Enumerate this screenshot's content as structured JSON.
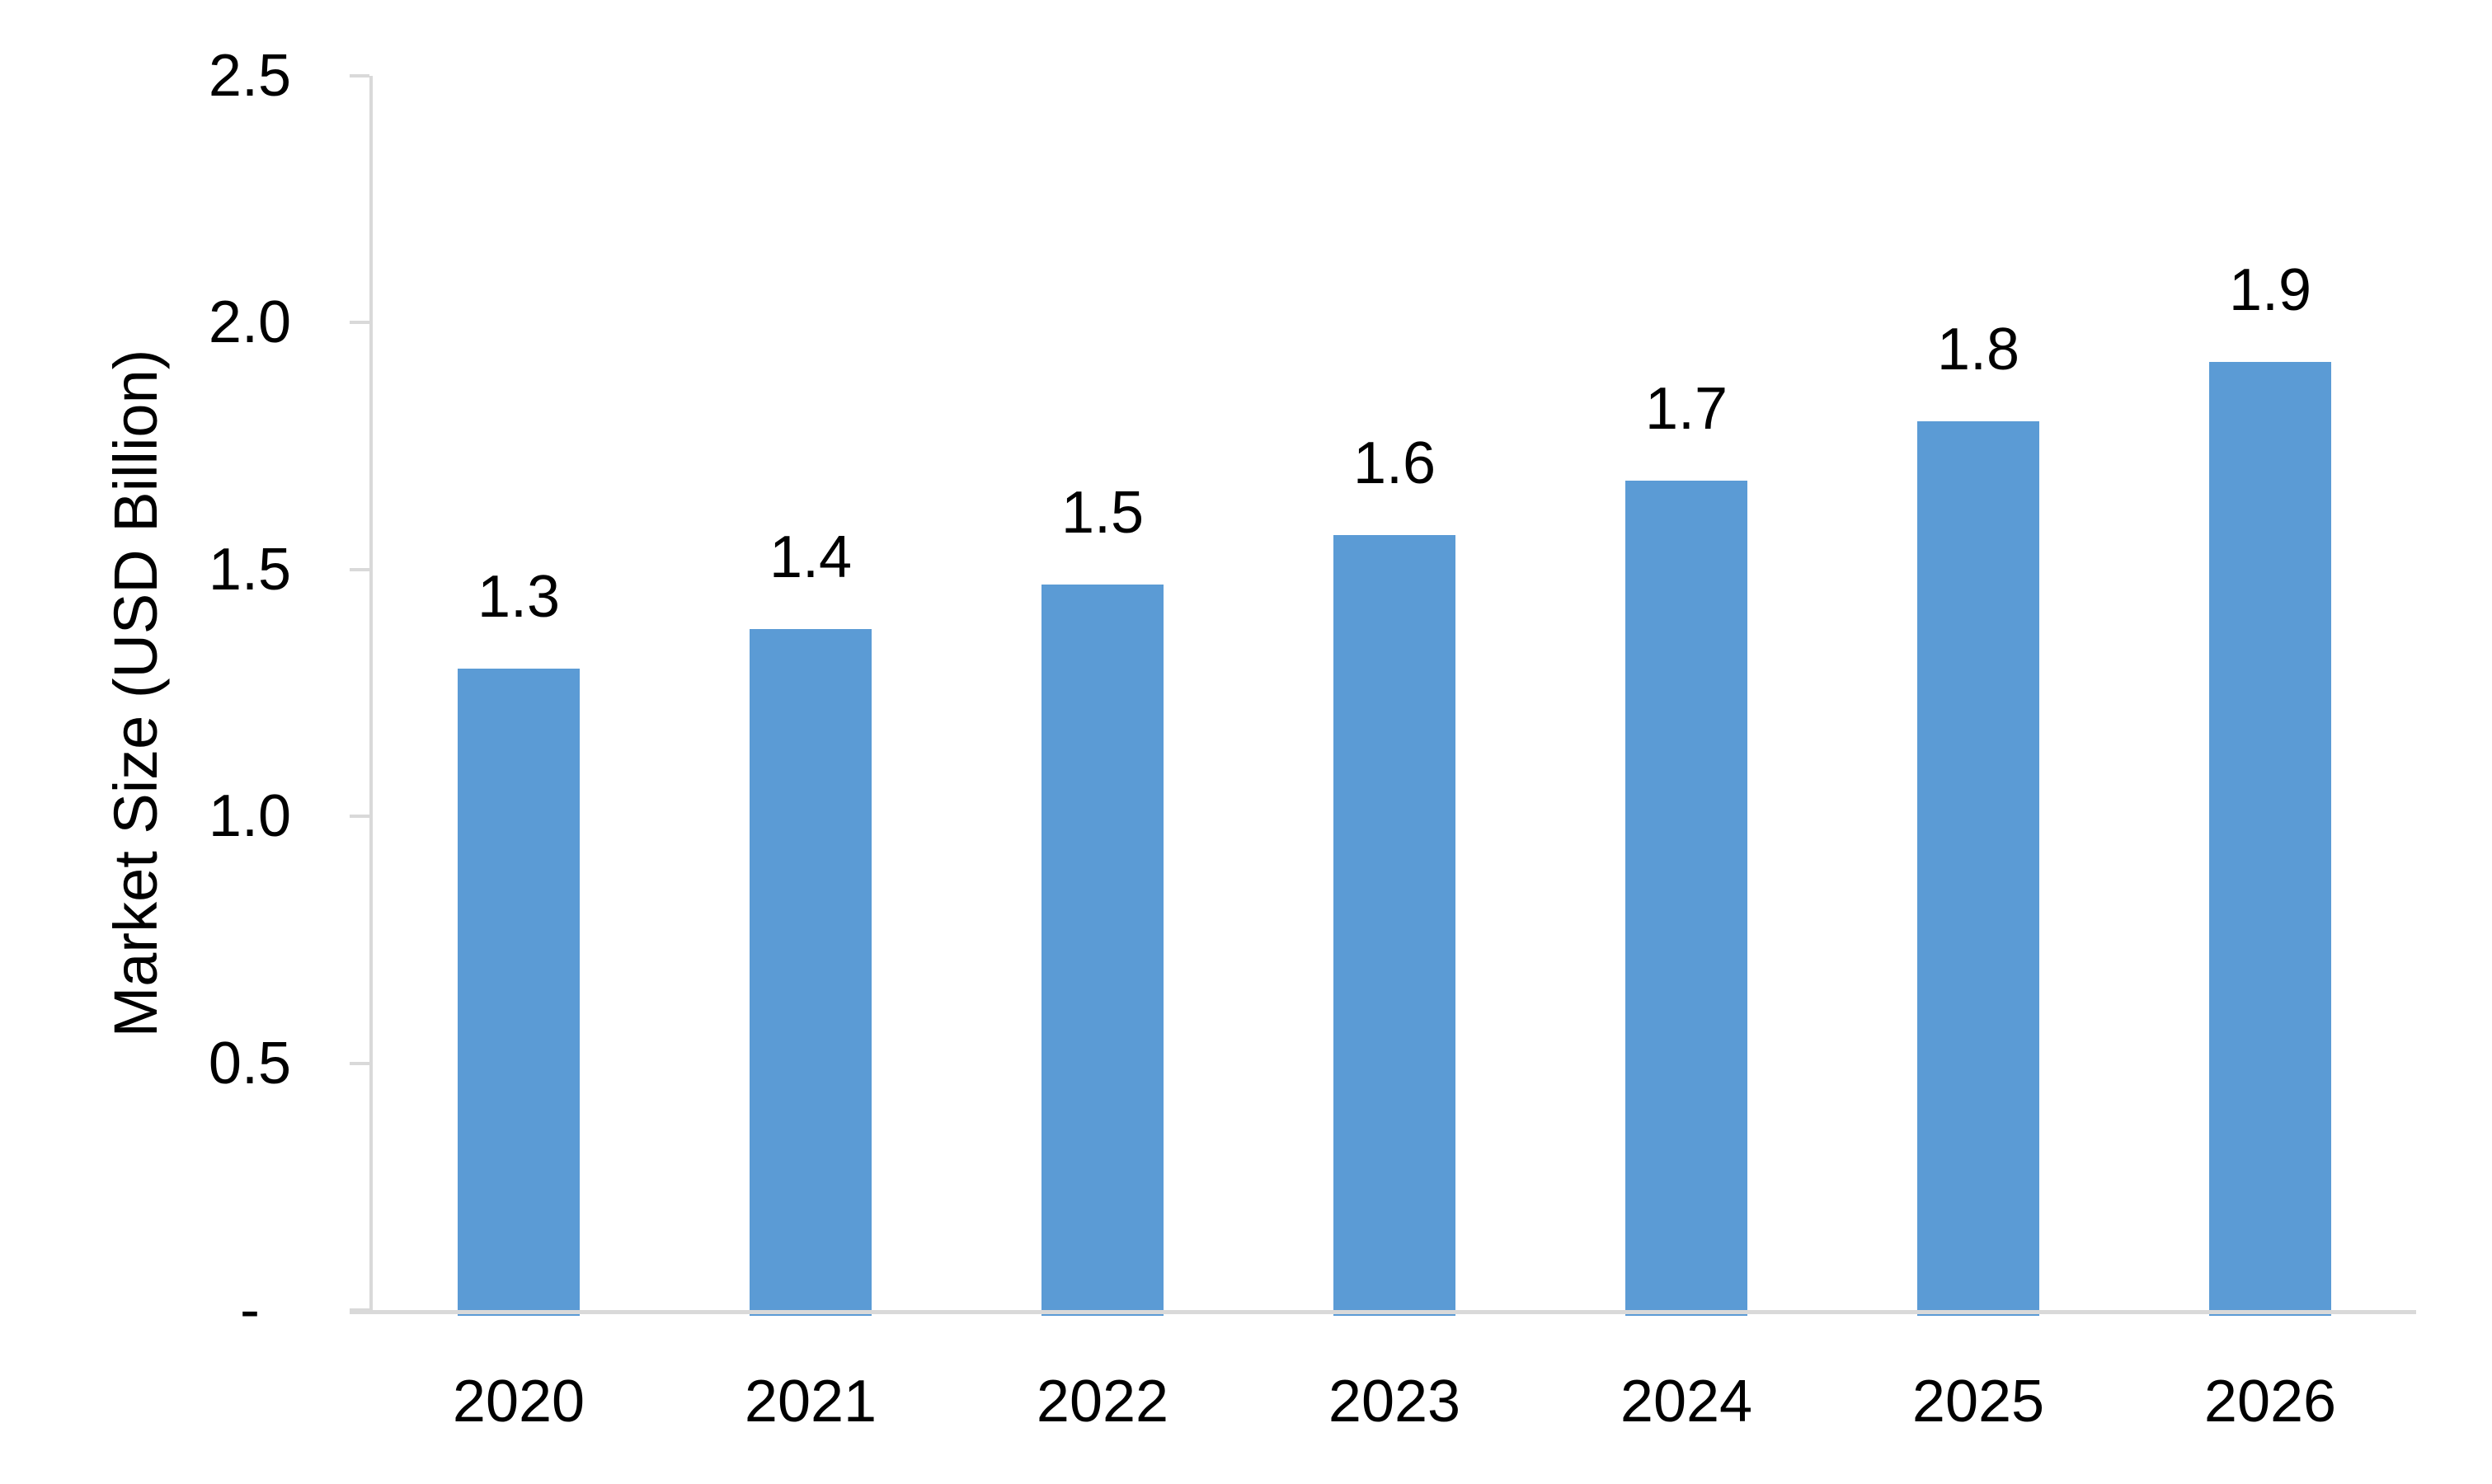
{
  "chart_data": {
    "type": "bar",
    "title": "",
    "categories": [
      "2020",
      "2021",
      "2022",
      "2023",
      "2024",
      "2025",
      "2026"
    ],
    "values": [
      1.3,
      1.4,
      1.5,
      1.6,
      1.7,
      1.8,
      1.9
    ],
    "values_precise": [
      1.3,
      1.38,
      1.47,
      1.57,
      1.68,
      1.8,
      1.92
    ],
    "data_labels": [
      "1.3",
      "1.4",
      "1.5",
      "1.6",
      "1.7",
      "1.8",
      "1.9"
    ],
    "xlabel": "",
    "ylabel": "Market Size (USD Billion)",
    "ylim": [
      0,
      2.5
    ],
    "yticks": [
      {
        "value": 0,
        "label": "-"
      },
      {
        "value": 0.5,
        "label": "0.5"
      },
      {
        "value": 1.0,
        "label": "1.0"
      },
      {
        "value": 1.5,
        "label": "1.5"
      },
      {
        "value": 2.0,
        "label": "2.0"
      },
      {
        "value": 2.5,
        "label": "2.5"
      }
    ],
    "grid": false,
    "legend": null,
    "colors": {
      "bar": "#5B9BD5",
      "axis": "#D9D9D9",
      "text": "#000000",
      "background": "#FFFFFF"
    }
  }
}
